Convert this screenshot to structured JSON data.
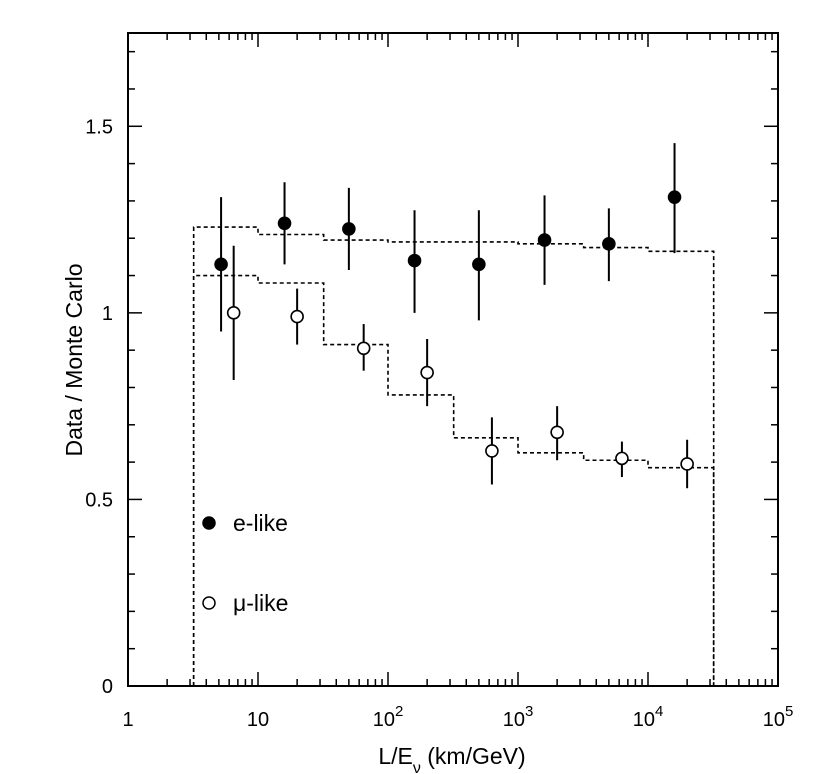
{
  "chart_data": {
    "type": "scatter",
    "xlabel_main": "L/E",
    "xlabel_sub": "ν",
    "xlabel_unit": " (km/GeV)",
    "ylabel": "Data / Monte Carlo",
    "xscale": "log",
    "xlim": [
      1,
      100000
    ],
    "ylim": [
      0,
      1.75
    ],
    "x_ticks": [
      {
        "value": 1,
        "base": "1",
        "exp": ""
      },
      {
        "value": 10,
        "base": "10",
        "exp": ""
      },
      {
        "value": 100,
        "base": "10",
        "exp": "2"
      },
      {
        "value": 1000,
        "base": "10",
        "exp": "3"
      },
      {
        "value": 10000,
        "base": "10",
        "exp": "4"
      },
      {
        "value": 100000,
        "base": "10",
        "exp": "5"
      }
    ],
    "y_ticks": [
      {
        "value": 0,
        "label": "0"
      },
      {
        "value": 0.5,
        "label": "0.5"
      },
      {
        "value": 1,
        "label": "1"
      },
      {
        "value": 1.5,
        "label": "1.5"
      }
    ],
    "legend_position": "lower-left",
    "series": [
      {
        "name": "e-like",
        "marker": "filled-circle",
        "x": [
          5.2,
          16,
          50,
          160,
          500,
          1600,
          5000,
          16000
        ],
        "y": [
          1.13,
          1.24,
          1.225,
          1.14,
          1.13,
          1.195,
          1.185,
          1.31
        ],
        "err_low": [
          0.18,
          0.11,
          0.11,
          0.14,
          0.15,
          0.12,
          0.1,
          0.15
        ],
        "err_high": [
          0.18,
          0.11,
          0.11,
          0.135,
          0.145,
          0.12,
          0.095,
          0.145
        ]
      },
      {
        "name": "μ-like",
        "marker": "open-circle",
        "x": [
          6.5,
          20,
          65,
          200,
          630,
          2000,
          6300,
          20000
        ],
        "y": [
          1.0,
          0.99,
          0.905,
          0.84,
          0.63,
          0.68,
          0.61,
          0.595
        ],
        "err_low": [
          0.18,
          0.075,
          0.06,
          0.09,
          0.09,
          0.075,
          0.05,
          0.065
        ],
        "err_high": [
          0.18,
          0.075,
          0.065,
          0.09,
          0.09,
          0.07,
          0.045,
          0.065
        ]
      }
    ],
    "expectation": [
      {
        "style": "dashed",
        "edges": [
          3.2,
          10,
          32,
          100,
          320,
          1000,
          3200,
          10000,
          32000
        ],
        "y": [
          1.23,
          1.21,
          1.195,
          1.19,
          1.19,
          1.185,
          1.175,
          1.165
        ]
      },
      {
        "style": "dashed",
        "edges": [
          3.2,
          10,
          32,
          100,
          320,
          1000,
          3200,
          10000,
          32000
        ],
        "y": [
          1.1,
          1.08,
          0.915,
          0.78,
          0.665,
          0.625,
          0.605,
          0.585
        ]
      }
    ]
  }
}
